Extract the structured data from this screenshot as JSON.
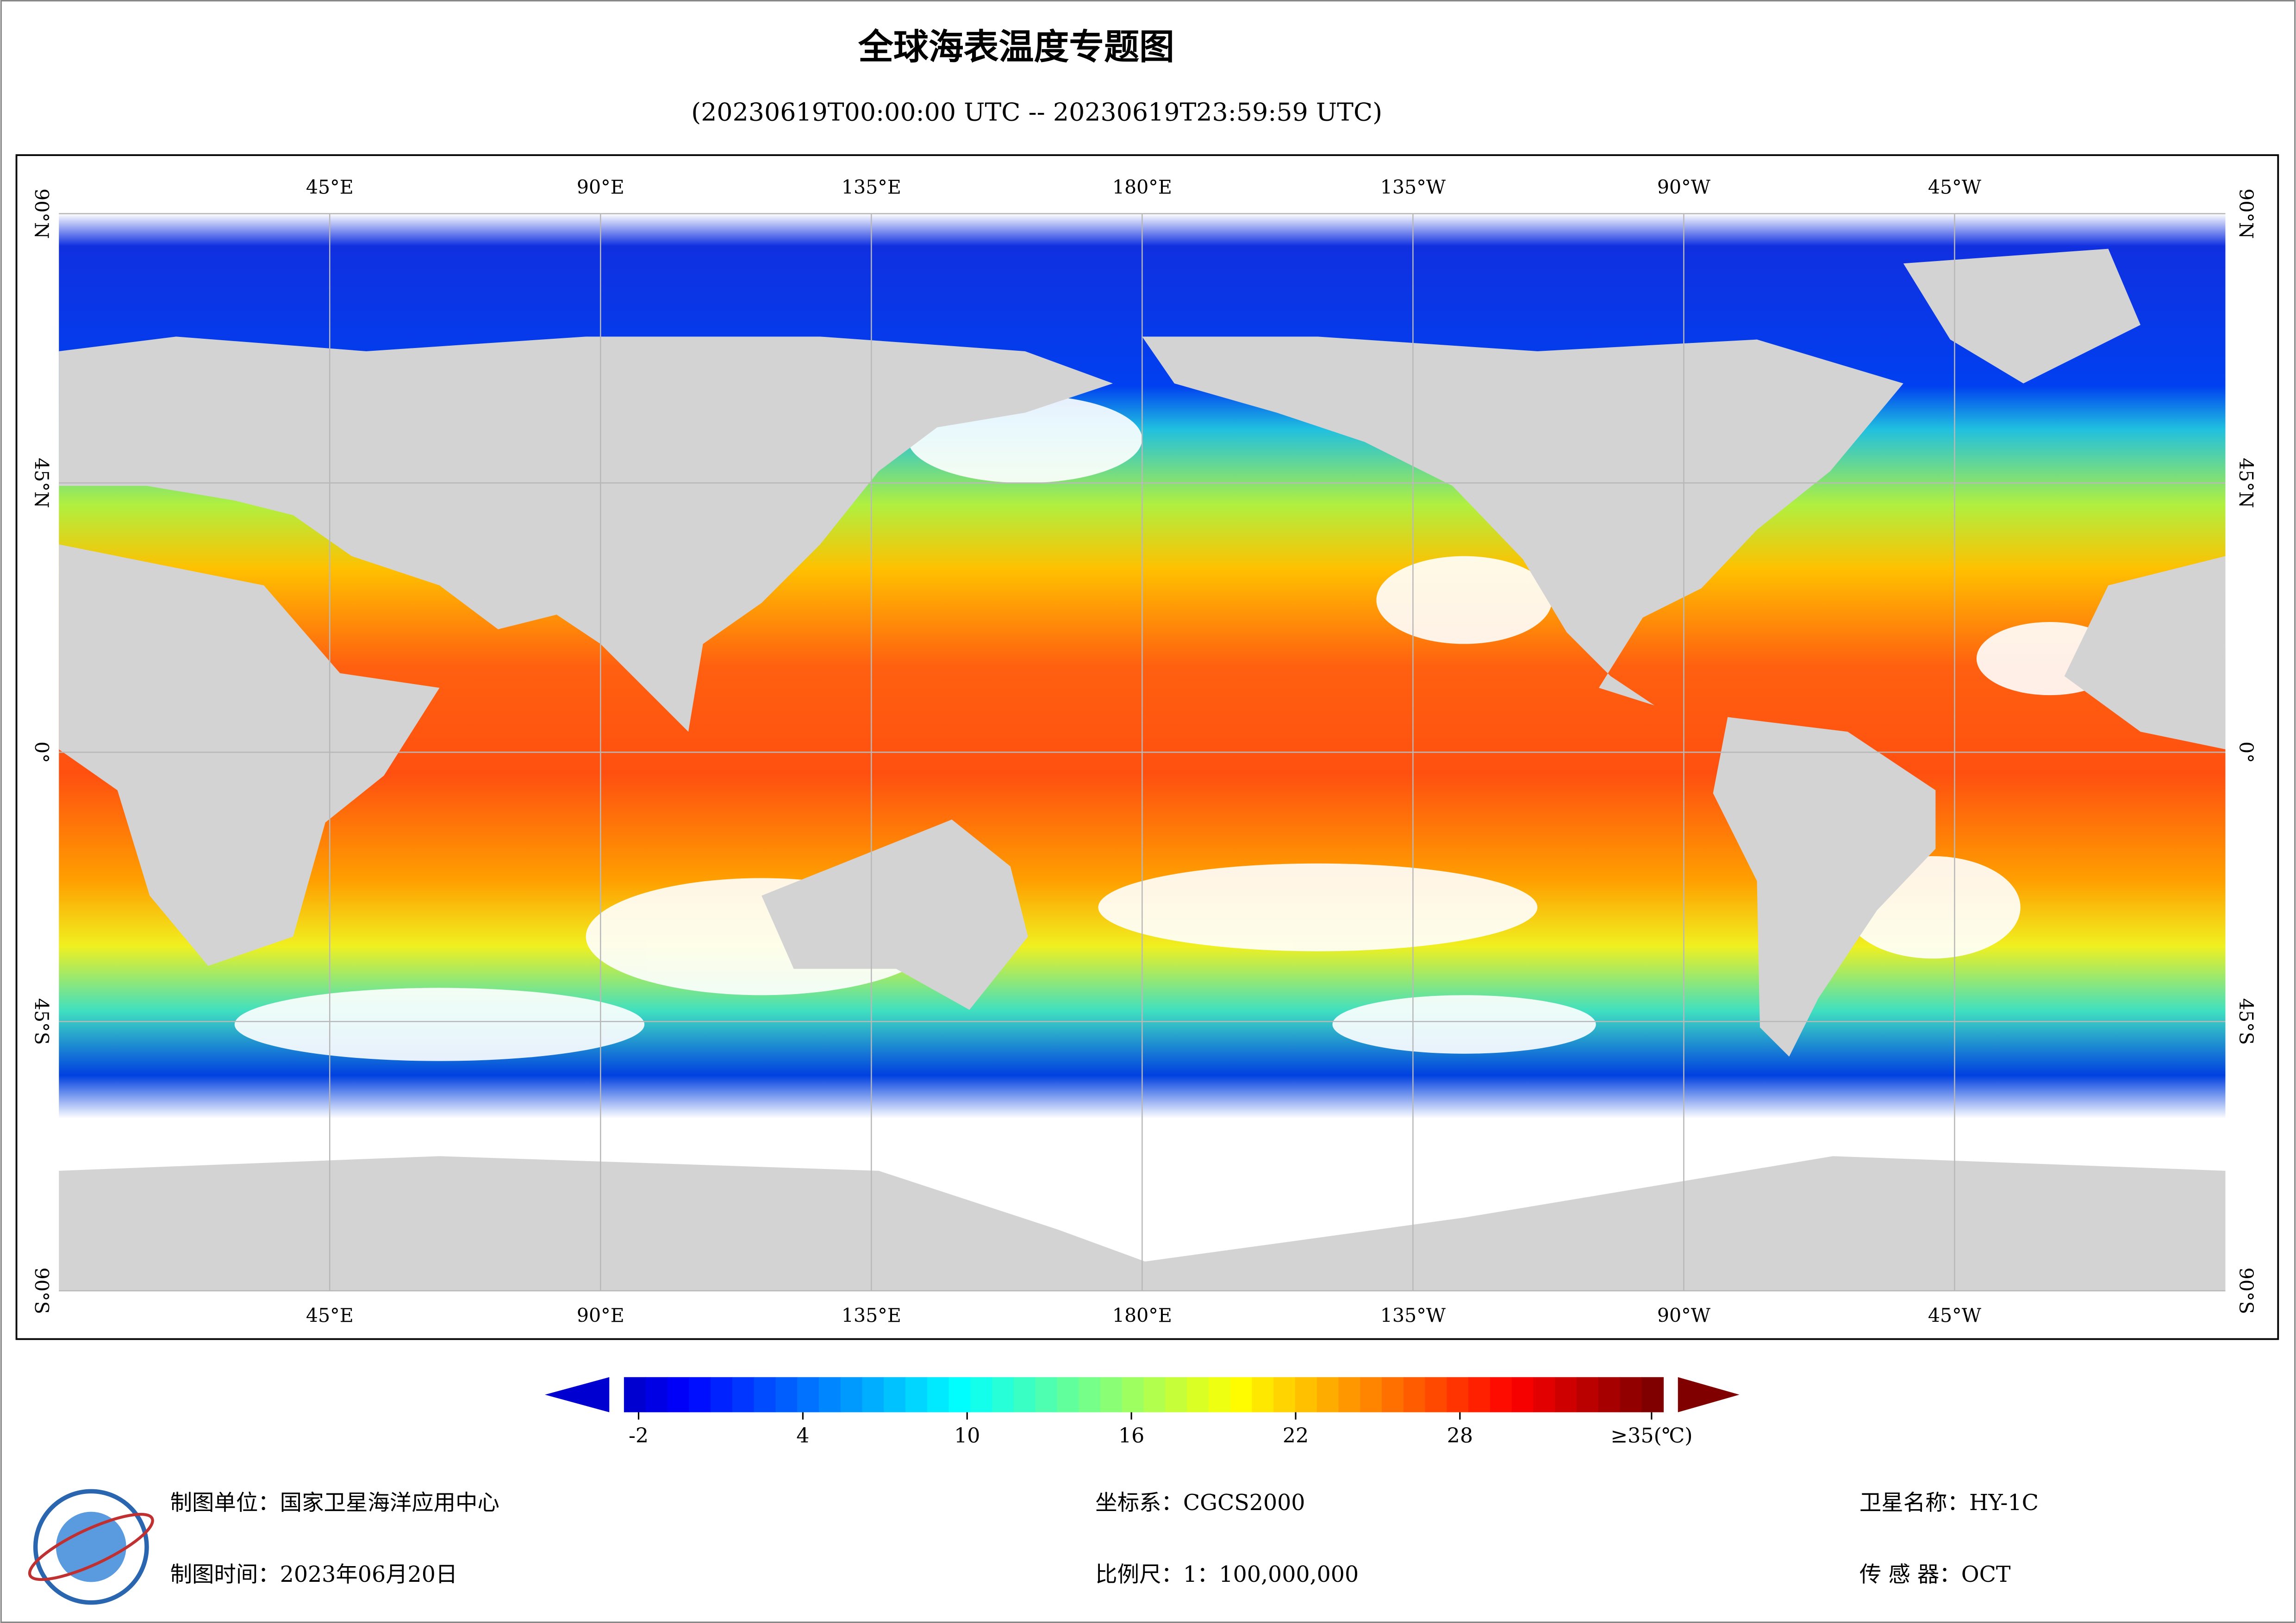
{
  "header": {
    "title": "全球海表温度专题图",
    "subtitle": "(20230619T00:00:00 UTC -- 20230619T23:59:59 UTC)"
  },
  "map": {
    "lon_range": [
      0,
      360
    ],
    "lat_range": [
      -90,
      90
    ],
    "lon_ticks": [
      {
        "value": 45,
        "label": "45°E"
      },
      {
        "value": 90,
        "label": "90°E"
      },
      {
        "value": 135,
        "label": "135°E"
      },
      {
        "value": 180,
        "label": "180°E"
      },
      {
        "value": -135,
        "label": "135°W"
      },
      {
        "value": -90,
        "label": "90°W"
      },
      {
        "value": -45,
        "label": "45°W"
      }
    ],
    "lat_ticks": [
      {
        "value": 90,
        "label": "90°N"
      },
      {
        "value": 45,
        "label": "45°N"
      },
      {
        "value": 0,
        "label": "0°"
      },
      {
        "value": -45,
        "label": "45°S"
      },
      {
        "value": -90,
        "label": "90°S"
      }
    ]
  },
  "colorbar": {
    "range": [
      -2,
      35
    ],
    "ticks": [
      -2,
      4,
      10,
      16,
      22,
      28,
      {
        "value": 35,
        "label": "≥35(℃)"
      }
    ]
  },
  "footer": {
    "producer": "制图单位：国家卫星海洋应用中心",
    "date": "制图时间：2023年06月20日",
    "crs": "坐标系：CGCS2000",
    "scale": "比例尺：1：100,000,000",
    "satellite": "卫星名称：HY-1C",
    "sensor": "传 感 器：OCT"
  }
}
